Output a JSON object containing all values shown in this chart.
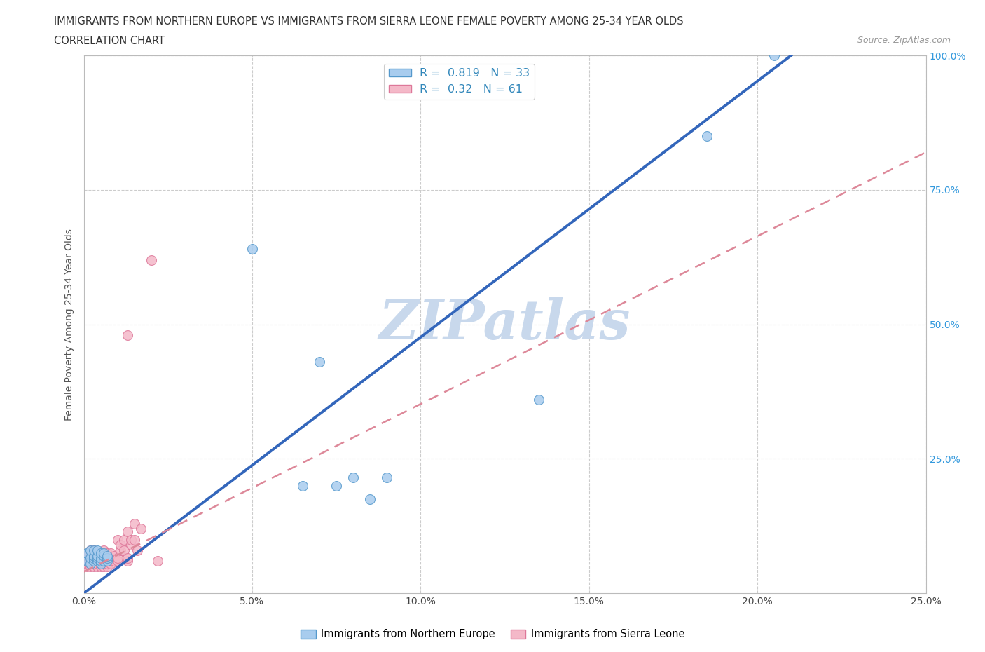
{
  "title_line1": "IMMIGRANTS FROM NORTHERN EUROPE VS IMMIGRANTS FROM SIERRA LEONE FEMALE POVERTY AMONG 25-34 YEAR OLDS",
  "title_line2": "CORRELATION CHART",
  "source": "Source: ZipAtlas.com",
  "ylabel": "Female Poverty Among 25-34 Year Olds",
  "xlim": [
    0,
    0.25
  ],
  "ylim": [
    0,
    1.0
  ],
  "xticks": [
    0.0,
    0.05,
    0.1,
    0.15,
    0.2,
    0.25
  ],
  "yticks": [
    0.0,
    0.25,
    0.5,
    0.75,
    1.0
  ],
  "xticklabels": [
    "0.0%",
    "5.0%",
    "10.0%",
    "15.0%",
    "20.0%",
    "25.0%"
  ],
  "yticklabels": [
    "",
    "25.0%",
    "50.0%",
    "75.0%",
    "100.0%"
  ],
  "blue_R": 0.819,
  "blue_N": 33,
  "pink_R": 0.32,
  "pink_N": 61,
  "blue_color": "#A8CCEE",
  "pink_color": "#F4B8C8",
  "blue_edge_color": "#5599CC",
  "pink_edge_color": "#DD7799",
  "blue_line_color": "#3366BB",
  "pink_line_color": "#DD8899",
  "watermark": "ZIPatlas",
  "watermark_color": "#C8D8EC",
  "legend_label_blue": "Immigrants from Northern Europe",
  "legend_label_pink": "Immigrants from Sierra Leone",
  "blue_x": [
    0.001,
    0.001,
    0.002,
    0.002,
    0.002,
    0.003,
    0.003,
    0.003,
    0.003,
    0.004,
    0.004,
    0.004,
    0.004,
    0.005,
    0.005,
    0.005,
    0.005,
    0.006,
    0.006,
    0.006,
    0.007,
    0.007,
    0.007,
    0.05,
    0.065,
    0.07,
    0.075,
    0.08,
    0.085,
    0.09,
    0.135,
    0.185,
    0.205
  ],
  "blue_y": [
    0.06,
    0.075,
    0.055,
    0.065,
    0.08,
    0.06,
    0.065,
    0.07,
    0.08,
    0.06,
    0.065,
    0.07,
    0.08,
    0.055,
    0.06,
    0.065,
    0.075,
    0.06,
    0.07,
    0.075,
    0.06,
    0.065,
    0.07,
    0.64,
    0.2,
    0.43,
    0.2,
    0.215,
    0.175,
    0.215,
    0.36,
    0.85,
    1.0
  ],
  "pink_x": [
    0.001,
    0.001,
    0.001,
    0.001,
    0.002,
    0.002,
    0.002,
    0.002,
    0.002,
    0.002,
    0.003,
    0.003,
    0.003,
    0.003,
    0.003,
    0.003,
    0.004,
    0.004,
    0.004,
    0.004,
    0.004,
    0.005,
    0.005,
    0.005,
    0.005,
    0.005,
    0.006,
    0.006,
    0.006,
    0.006,
    0.006,
    0.006,
    0.007,
    0.007,
    0.007,
    0.007,
    0.007,
    0.008,
    0.008,
    0.008,
    0.009,
    0.009,
    0.01,
    0.01,
    0.01,
    0.011,
    0.011,
    0.012,
    0.012,
    0.013,
    0.013,
    0.013,
    0.013,
    0.014,
    0.014,
    0.015,
    0.015,
    0.016,
    0.017,
    0.02,
    0.022
  ],
  "pink_y": [
    0.05,
    0.055,
    0.06,
    0.07,
    0.05,
    0.055,
    0.06,
    0.065,
    0.07,
    0.08,
    0.05,
    0.055,
    0.06,
    0.065,
    0.07,
    0.08,
    0.05,
    0.055,
    0.06,
    0.065,
    0.075,
    0.05,
    0.055,
    0.06,
    0.065,
    0.07,
    0.05,
    0.055,
    0.06,
    0.065,
    0.07,
    0.08,
    0.05,
    0.055,
    0.06,
    0.065,
    0.075,
    0.055,
    0.065,
    0.075,
    0.06,
    0.07,
    0.06,
    0.065,
    0.1,
    0.08,
    0.09,
    0.08,
    0.1,
    0.06,
    0.065,
    0.115,
    0.48,
    0.09,
    0.1,
    0.1,
    0.13,
    0.08,
    0.12,
    0.62,
    0.06
  ],
  "blue_trendline_x": [
    0.0,
    0.21
  ],
  "blue_trendline_y": [
    0.0,
    1.0
  ],
  "pink_trendline_x": [
    0.0,
    0.25
  ],
  "pink_trendline_y": [
    0.04,
    0.82
  ]
}
